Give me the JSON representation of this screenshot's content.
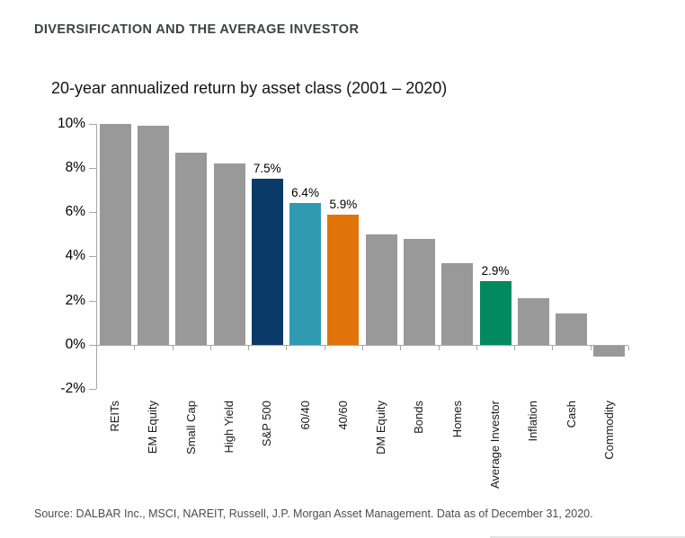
{
  "header": {
    "title": "DIVERSIFICATION AND THE AVERAGE INVESTOR"
  },
  "chart_data": {
    "type": "bar",
    "title": "20-year annualized return by asset class (2001 – 2020)",
    "categories": [
      "REITs",
      "EM Equity",
      "Small Cap",
      "High Yield",
      "S&P 500",
      "60/40",
      "40/60",
      "DM Equity",
      "Bonds",
      "Homes",
      "Average Investor",
      "Inflation",
      "Cash",
      "Commodity"
    ],
    "values": [
      10.0,
      9.9,
      8.7,
      8.2,
      7.5,
      6.4,
      5.9,
      5.0,
      4.8,
      3.7,
      2.9,
      2.1,
      1.4,
      -0.5
    ],
    "data_labels": [
      null,
      null,
      null,
      null,
      "7.5%",
      "6.4%",
      "5.9%",
      null,
      null,
      null,
      "2.9%",
      null,
      null,
      null
    ],
    "bar_colors": [
      null,
      null,
      null,
      null,
      "#0a3a67",
      "#2f9ab2",
      "#e17408",
      null,
      null,
      null,
      "#008a5e",
      null,
      null,
      null
    ],
    "default_bar_color": "#999999",
    "highlight_meaning": {
      "#0a3a67": "S&P 500",
      "#2f9ab2": "60/40 portfolio",
      "#e17408": "40/60 portfolio",
      "#008a5e": "Average Investor"
    },
    "xlabel": "",
    "ylabel": "",
    "ylim": [
      -2,
      10
    ],
    "yticks": [
      {
        "value": 10,
        "label": "10%"
      },
      {
        "value": 8,
        "label": "8%"
      },
      {
        "value": 6,
        "label": "6%"
      },
      {
        "value": 4,
        "label": "4%"
      },
      {
        "value": 2,
        "label": "2%"
      },
      {
        "value": 0,
        "label": "0%"
      },
      {
        "value": -2,
        "label": "-2%"
      }
    ],
    "grid": false,
    "legend": "none",
    "axis_color": "#a6a6a6"
  },
  "footer": {
    "source": "Source: DALBAR Inc., MSCI, NAREIT, Russell, J.P. Morgan Asset Management. Data as of December 31, 2020."
  }
}
